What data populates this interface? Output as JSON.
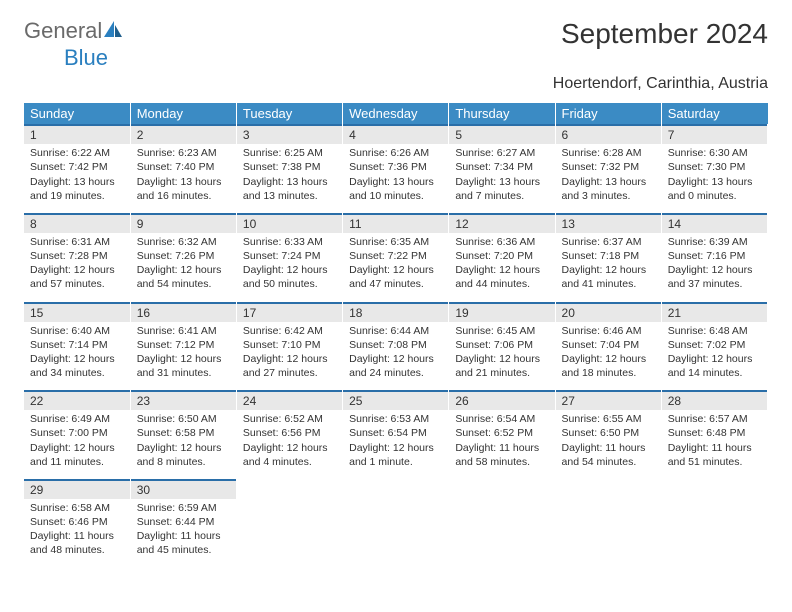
{
  "brand": {
    "general": "General",
    "blue": "Blue"
  },
  "title": "September 2024",
  "location": "Hoertendorf, Carinthia, Austria",
  "colors": {
    "header_bg": "#3b8bc4",
    "daynum_bg": "#e8e8e8",
    "rule": "#2a6ea8",
    "logo_gray": "#6a6a6a",
    "logo_blue": "#2a7fbf"
  },
  "weekdays": [
    "Sunday",
    "Monday",
    "Tuesday",
    "Wednesday",
    "Thursday",
    "Friday",
    "Saturday"
  ],
  "days": [
    {
      "n": "1",
      "sr": "6:22 AM",
      "ss": "7:42 PM",
      "dl": "13 hours and 19 minutes."
    },
    {
      "n": "2",
      "sr": "6:23 AM",
      "ss": "7:40 PM",
      "dl": "13 hours and 16 minutes."
    },
    {
      "n": "3",
      "sr": "6:25 AM",
      "ss": "7:38 PM",
      "dl": "13 hours and 13 minutes."
    },
    {
      "n": "4",
      "sr": "6:26 AM",
      "ss": "7:36 PM",
      "dl": "13 hours and 10 minutes."
    },
    {
      "n": "5",
      "sr": "6:27 AM",
      "ss": "7:34 PM",
      "dl": "13 hours and 7 minutes."
    },
    {
      "n": "6",
      "sr": "6:28 AM",
      "ss": "7:32 PM",
      "dl": "13 hours and 3 minutes."
    },
    {
      "n": "7",
      "sr": "6:30 AM",
      "ss": "7:30 PM",
      "dl": "13 hours and 0 minutes."
    },
    {
      "n": "8",
      "sr": "6:31 AM",
      "ss": "7:28 PM",
      "dl": "12 hours and 57 minutes."
    },
    {
      "n": "9",
      "sr": "6:32 AM",
      "ss": "7:26 PM",
      "dl": "12 hours and 54 minutes."
    },
    {
      "n": "10",
      "sr": "6:33 AM",
      "ss": "7:24 PM",
      "dl": "12 hours and 50 minutes."
    },
    {
      "n": "11",
      "sr": "6:35 AM",
      "ss": "7:22 PM",
      "dl": "12 hours and 47 minutes."
    },
    {
      "n": "12",
      "sr": "6:36 AM",
      "ss": "7:20 PM",
      "dl": "12 hours and 44 minutes."
    },
    {
      "n": "13",
      "sr": "6:37 AM",
      "ss": "7:18 PM",
      "dl": "12 hours and 41 minutes."
    },
    {
      "n": "14",
      "sr": "6:39 AM",
      "ss": "7:16 PM",
      "dl": "12 hours and 37 minutes."
    },
    {
      "n": "15",
      "sr": "6:40 AM",
      "ss": "7:14 PM",
      "dl": "12 hours and 34 minutes."
    },
    {
      "n": "16",
      "sr": "6:41 AM",
      "ss": "7:12 PM",
      "dl": "12 hours and 31 minutes."
    },
    {
      "n": "17",
      "sr": "6:42 AM",
      "ss": "7:10 PM",
      "dl": "12 hours and 27 minutes."
    },
    {
      "n": "18",
      "sr": "6:44 AM",
      "ss": "7:08 PM",
      "dl": "12 hours and 24 minutes."
    },
    {
      "n": "19",
      "sr": "6:45 AM",
      "ss": "7:06 PM",
      "dl": "12 hours and 21 minutes."
    },
    {
      "n": "20",
      "sr": "6:46 AM",
      "ss": "7:04 PM",
      "dl": "12 hours and 18 minutes."
    },
    {
      "n": "21",
      "sr": "6:48 AM",
      "ss": "7:02 PM",
      "dl": "12 hours and 14 minutes."
    },
    {
      "n": "22",
      "sr": "6:49 AM",
      "ss": "7:00 PM",
      "dl": "12 hours and 11 minutes."
    },
    {
      "n": "23",
      "sr": "6:50 AM",
      "ss": "6:58 PM",
      "dl": "12 hours and 8 minutes."
    },
    {
      "n": "24",
      "sr": "6:52 AM",
      "ss": "6:56 PM",
      "dl": "12 hours and 4 minutes."
    },
    {
      "n": "25",
      "sr": "6:53 AM",
      "ss": "6:54 PM",
      "dl": "12 hours and 1 minute."
    },
    {
      "n": "26",
      "sr": "6:54 AM",
      "ss": "6:52 PM",
      "dl": "11 hours and 58 minutes."
    },
    {
      "n": "27",
      "sr": "6:55 AM",
      "ss": "6:50 PM",
      "dl": "11 hours and 54 minutes."
    },
    {
      "n": "28",
      "sr": "6:57 AM",
      "ss": "6:48 PM",
      "dl": "11 hours and 51 minutes."
    },
    {
      "n": "29",
      "sr": "6:58 AM",
      "ss": "6:46 PM",
      "dl": "11 hours and 48 minutes."
    },
    {
      "n": "30",
      "sr": "6:59 AM",
      "ss": "6:44 PM",
      "dl": "11 hours and 45 minutes."
    }
  ],
  "labels": {
    "sunrise": "Sunrise: ",
    "sunset": "Sunset: ",
    "daylight": "Daylight: "
  },
  "layout": {
    "start_weekday": 0,
    "trailing_blanks": 5
  }
}
